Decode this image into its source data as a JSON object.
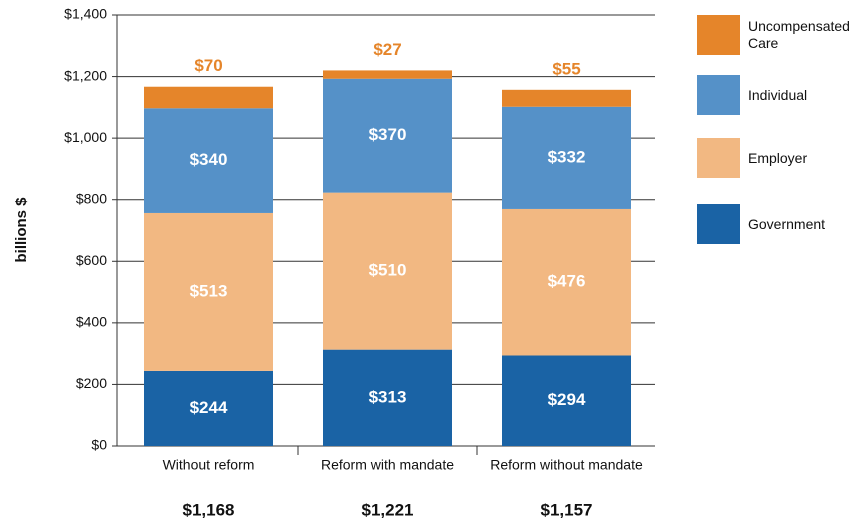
{
  "chart_data": {
    "type": "stacked_bar",
    "y_label": "billions $",
    "categories": [
      "Without reform",
      "Reform with mandate",
      "Reform without mandate"
    ],
    "series": [
      {
        "name": "Government",
        "color": "#1a63a5",
        "values": [
          244,
          313,
          294
        ],
        "value_labels": [
          "$244",
          "$313",
          "$294"
        ]
      },
      {
        "name": "Employer",
        "color": "#f2b882",
        "values": [
          513,
          510,
          476
        ],
        "value_labels": [
          "$513",
          "$510",
          "$476"
        ]
      },
      {
        "name": "Individual",
        "color": "#5591c8",
        "values": [
          340,
          370,
          332
        ],
        "value_labels": [
          "$340",
          "$370",
          "$332"
        ]
      },
      {
        "name": "Uncompensated Care",
        "color": "#e5852a",
        "values": [
          70,
          27,
          55
        ],
        "value_labels": [
          "$70",
          "$27",
          "$55"
        ]
      }
    ],
    "totals": {
      "values": [
        1168,
        1221,
        1157
      ],
      "value_labels": [
        "$1,168",
        "$1,221",
        "$1,157"
      ]
    },
    "ylim": [
      0,
      1400
    ],
    "yticks": [
      {
        "value": 0,
        "label": "$0"
      },
      {
        "value": 200,
        "label": "$200"
      },
      {
        "value": 400,
        "label": "$400"
      },
      {
        "value": 600,
        "label": "$600"
      },
      {
        "value": 800,
        "label": "$800"
      },
      {
        "value": 1000,
        "label": "$1,000"
      },
      {
        "value": 1200,
        "label": "$1,200"
      },
      {
        "value": 1400,
        "label": "$1,400"
      }
    ],
    "grid": true
  }
}
